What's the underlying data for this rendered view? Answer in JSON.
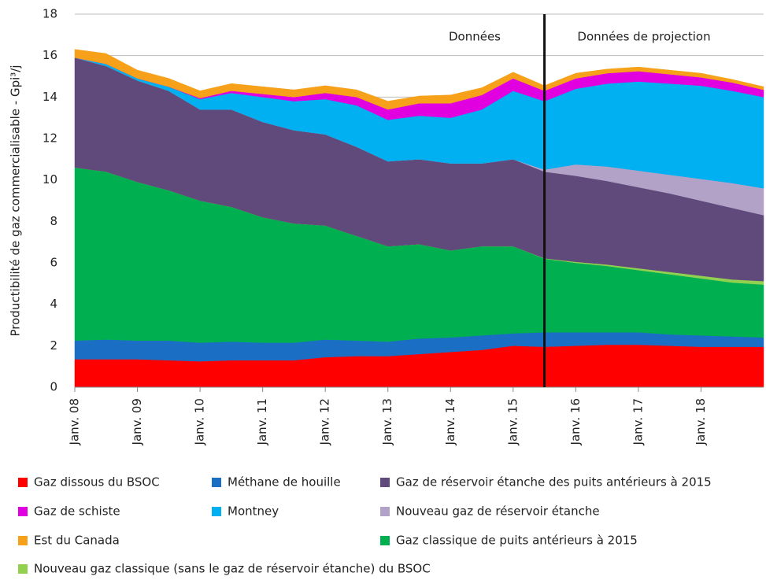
{
  "chart_data": {
    "type": "stacked_area",
    "y_label": "Productibilité de gaz commercialisable - Gpi³/j",
    "annotations": [
      "Données",
      "Données de projection"
    ],
    "categories": [
      "Janv. 08",
      null,
      "Janv. 09",
      null,
      "Janv. 10",
      null,
      "Janv. 11",
      null,
      "Janv. 12",
      null,
      "Janv. 13",
      null,
      "Janv. 14",
      null,
      "Janv. 15",
      null,
      "Janv. 16",
      null,
      "Janv. 17",
      null,
      "Janv. 18",
      null,
      null
    ],
    "ylim": [
      0,
      18
    ],
    "yticks": [
      0,
      2,
      4,
      6,
      8,
      10,
      12,
      14,
      16,
      18
    ],
    "grid": true,
    "series": [
      {
        "name": "Gaz dissous du BSOC",
        "color": "#ff0000",
        "values": [
          1.35,
          1.35,
          1.35,
          1.3,
          1.25,
          1.3,
          1.3,
          1.3,
          1.45,
          1.5,
          1.5,
          1.6,
          1.7,
          1.8,
          2.0,
          1.95,
          2.0,
          2.05,
          2.05,
          2.0,
          1.95,
          1.95,
          1.95
        ]
      },
      {
        "name": "Méthane de houille",
        "color": "#1a6fc4",
        "values": [
          0.9,
          0.95,
          0.9,
          0.95,
          0.9,
          0.9,
          0.85,
          0.85,
          0.85,
          0.75,
          0.7,
          0.75,
          0.7,
          0.7,
          0.6,
          0.7,
          0.65,
          0.6,
          0.6,
          0.55,
          0.55,
          0.5,
          0.45
        ]
      },
      {
        "name": "Gaz classique de puits antérieurs à 2015",
        "color": "#00b050",
        "values": [
          8.35,
          8.1,
          7.65,
          7.25,
          6.85,
          6.5,
          6.05,
          5.75,
          5.5,
          5.05,
          4.6,
          4.55,
          4.2,
          4.3,
          4.2,
          3.55,
          3.35,
          3.2,
          3.0,
          2.9,
          2.75,
          2.6,
          2.55
        ]
      },
      {
        "name": "Nouveau gaz classique (sans le gaz de réservoir étanche) du BSOC",
        "color": "#92d050",
        "values": [
          0,
          0,
          0,
          0,
          0,
          0,
          0,
          0,
          0,
          0,
          0,
          0,
          0,
          0,
          0,
          0.02,
          0.05,
          0.07,
          0.09,
          0.11,
          0.13,
          0.15,
          0.17
        ]
      },
      {
        "name": "Gaz de réservoir étanche des puits antérieurs à 2015",
        "color": "#604a7b",
        "values": [
          5.3,
          5.1,
          4.9,
          4.8,
          4.4,
          4.7,
          4.6,
          4.5,
          4.4,
          4.3,
          4.1,
          4.1,
          4.2,
          4.0,
          4.2,
          4.18,
          4.15,
          4.03,
          3.91,
          3.79,
          3.62,
          3.45,
          3.18
        ]
      },
      {
        "name": "Nouveau gaz de réservoir étanche",
        "color": "#b3a2c7",
        "values": [
          0,
          0,
          0,
          0,
          0,
          0,
          0,
          0,
          0,
          0,
          0,
          0,
          0,
          0,
          0,
          0.1,
          0.55,
          0.7,
          0.8,
          0.9,
          1.05,
          1.2,
          1.3
        ]
      },
      {
        "name": "Montney",
        "color": "#00b0f0",
        "values": [
          0,
          0.1,
          0.1,
          0.2,
          0.5,
          0.8,
          1.2,
          1.4,
          1.7,
          2.0,
          2.0,
          2.1,
          2.2,
          2.6,
          3.3,
          3.3,
          3.65,
          4.0,
          4.3,
          4.4,
          4.5,
          4.45,
          4.4
        ]
      },
      {
        "name": "Gaz de schiste",
        "color": "#e000e0",
        "values": [
          0,
          0,
          0,
          0,
          0.05,
          0.1,
          0.15,
          0.2,
          0.3,
          0.4,
          0.5,
          0.6,
          0.7,
          0.7,
          0.6,
          0.5,
          0.5,
          0.5,
          0.5,
          0.45,
          0.4,
          0.4,
          0.35
        ]
      },
      {
        "name": "Est du Canada",
        "color": "#f7a11a",
        "values": [
          0.4,
          0.5,
          0.4,
          0.4,
          0.35,
          0.35,
          0.35,
          0.35,
          0.35,
          0.35,
          0.4,
          0.35,
          0.4,
          0.35,
          0.3,
          0.25,
          0.25,
          0.2,
          0.2,
          0.2,
          0.2,
          0.15,
          0.15
        ]
      }
    ]
  }
}
